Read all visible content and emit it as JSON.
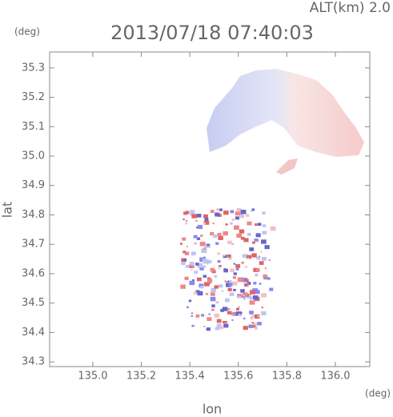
{
  "chart_data": {
    "type": "map",
    "title": "2013/07/18 07:40:03",
    "altitude_label": "ALT(km)  2.0",
    "y_unit": "(deg)",
    "x_unit": "(deg)",
    "xlabel": "lon",
    "ylabel": "lat",
    "xlim": [
      134.822,
      136.142
    ],
    "ylim": [
      34.284,
      35.354
    ],
    "xticks": [
      {
        "value": 135.0,
        "label": "135.0"
      },
      135.2,
      135.4,
      135.6,
      135.8,
      {
        "value": 136.0,
        "label": "136.0"
      }
    ],
    "yticks": [
      35.3,
      35.2,
      35.1,
      {
        "value": 35.0,
        "label": "35.0"
      },
      34.9,
      34.8,
      34.7,
      34.6,
      34.5,
      34.4,
      34.3
    ]
  }
}
